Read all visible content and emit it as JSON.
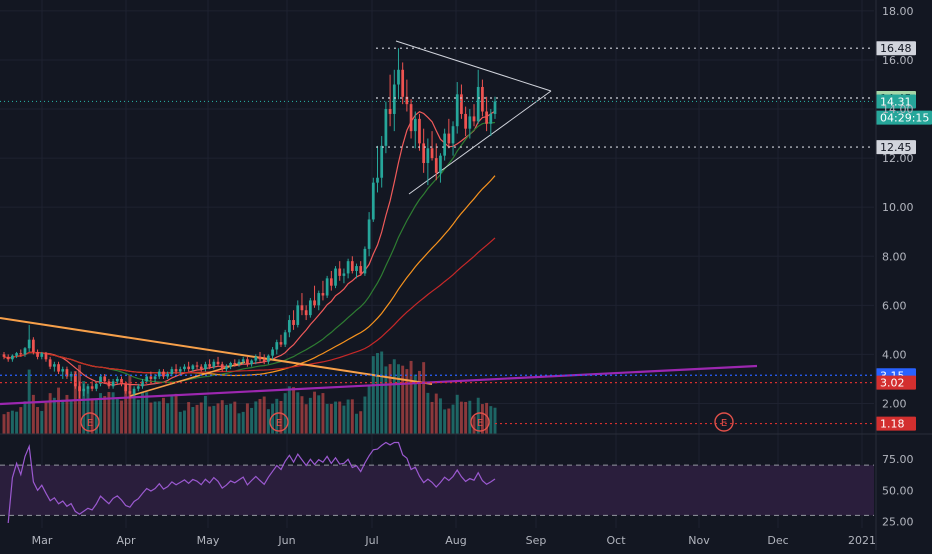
{
  "colors": {
    "background": "#131722",
    "grid": "#1e2230",
    "up": "#26a69a",
    "down": "#ef5350",
    "axis_text": "#b2b5be",
    "sma20": "#f05a5a",
    "sma50": "#2e7d32",
    "sma100": "#f7931e",
    "sma200": "#c62828",
    "trendline_orange": "#f7a04a",
    "trendline_purple": "#9c27b0",
    "triangle": "#d1d4dc",
    "rsi_line": "#9b59d0",
    "rsi_fill": "#2a1e3c"
  },
  "chart_data": [
    {
      "type": "candlestick",
      "title": "",
      "x": [
        "Mar",
        "Apr",
        "May",
        "Jun",
        "Jul",
        "Aug",
        "Sep",
        "Oct",
        "Nov",
        "Dec",
        "2021"
      ],
      "yticks": [
        "18.00",
        "16.00",
        "14.00",
        "12.00",
        "10.00",
        "8.00",
        "6.00",
        "4.00",
        "2.00"
      ],
      "ylim": [
        1.0,
        18.2
      ],
      "price_markers": [
        {
          "label": "16.48",
          "value": 16.48,
          "style": "white"
        },
        {
          "label": "14.45",
          "value": 14.45,
          "style": "lightgreen"
        },
        {
          "label": "14.31",
          "value": 14.31,
          "style": "teal"
        },
        {
          "label": "04:29:15",
          "value": 13.65,
          "style": "teal"
        },
        {
          "label": "12.45",
          "value": 12.45,
          "style": "white"
        },
        {
          "label": "3.15",
          "value": 3.15,
          "style": "blue"
        },
        {
          "label": "3.02",
          "value": 2.85,
          "style": "red"
        },
        {
          "label": "1.18",
          "value": 1.18,
          "style": "red"
        }
      ],
      "earnings_markers": [
        "E",
        "E",
        "E",
        "E"
      ],
      "earnings_dates_index": [
        16,
        56,
        112,
        182
      ],
      "volume": {
        "unit": "relative",
        "max": 100
      },
      "series": [
        {
          "values_ohlc": [
            [
              4.0,
              4.1,
              3.8,
              3.9
            ],
            [
              3.9,
              4.0,
              3.7,
              3.8
            ],
            [
              3.8,
              4.0,
              3.7,
              3.95
            ],
            [
              3.95,
              4.1,
              3.85,
              4.05
            ],
            [
              4.05,
              4.2,
              3.9,
              4.0
            ],
            [
              4.0,
              4.3,
              3.9,
              4.25
            ],
            [
              4.25,
              5.2,
              4.1,
              4.6
            ],
            [
              4.6,
              4.7,
              4.0,
              4.1
            ],
            [
              4.1,
              4.2,
              3.8,
              3.9
            ],
            [
              3.9,
              4.1,
              3.8,
              4.05
            ],
            [
              4.05,
              4.1,
              3.7,
              3.8
            ],
            [
              3.8,
              3.9,
              3.4,
              3.5
            ],
            [
              3.5,
              3.7,
              3.3,
              3.6
            ],
            [
              3.6,
              3.7,
              3.2,
              3.3
            ],
            [
              3.3,
              3.5,
              3.0,
              3.4
            ],
            [
              3.4,
              3.5,
              3.0,
              3.1
            ],
            [
              3.1,
              3.3,
              2.9,
              3.2
            ],
            [
              3.2,
              3.3,
              2.6,
              2.7
            ],
            [
              2.7,
              2.9,
              2.2,
              2.5
            ],
            [
              2.5,
              2.8,
              2.3,
              2.6
            ],
            [
              2.6,
              2.8,
              2.4,
              2.7
            ],
            [
              2.7,
              2.9,
              2.5,
              2.6
            ],
            [
              2.6,
              2.9,
              2.5,
              2.8
            ],
            [
              2.8,
              3.2,
              2.7,
              3.1
            ],
            [
              3.1,
              3.2,
              2.8,
              2.9
            ],
            [
              2.9,
              3.0,
              2.6,
              2.7
            ],
            [
              2.7,
              3.0,
              2.6,
              2.9
            ],
            [
              2.9,
              3.1,
              2.8,
              3.0
            ],
            [
              3.0,
              3.1,
              2.7,
              2.8
            ],
            [
              2.8,
              2.9,
              2.4,
              2.5
            ],
            [
              2.5,
              2.8,
              2.2,
              2.4
            ],
            [
              2.4,
              2.7,
              2.3,
              2.6
            ],
            [
              2.6,
              2.8,
              2.5,
              2.7
            ],
            [
              2.7,
              3.0,
              2.6,
              2.9
            ],
            [
              2.9,
              3.2,
              2.8,
              3.1
            ],
            [
              3.1,
              3.3,
              2.9,
              3.0
            ],
            [
              3.0,
              3.2,
              2.8,
              3.1
            ],
            [
              3.1,
              3.4,
              3.0,
              3.3
            ],
            [
              3.3,
              3.4,
              3.0,
              3.1
            ],
            [
              3.1,
              3.3,
              3.0,
              3.2
            ],
            [
              3.2,
              3.5,
              3.1,
              3.4
            ],
            [
              3.4,
              3.6,
              3.2,
              3.3
            ],
            [
              3.3,
              3.5,
              3.2,
              3.4
            ],
            [
              3.4,
              3.6,
              3.3,
              3.5
            ],
            [
              3.5,
              3.7,
              3.3,
              3.4
            ],
            [
              3.4,
              3.6,
              3.3,
              3.55
            ],
            [
              3.55,
              3.7,
              3.4,
              3.5
            ],
            [
              3.5,
              3.6,
              3.3,
              3.4
            ],
            [
              3.4,
              3.7,
              3.3,
              3.6
            ],
            [
              3.6,
              3.8,
              3.4,
              3.5
            ],
            [
              3.5,
              3.8,
              3.4,
              3.7
            ],
            [
              3.7,
              3.9,
              3.5,
              3.6
            ],
            [
              3.6,
              3.7,
              3.3,
              3.4
            ],
            [
              3.4,
              3.6,
              3.3,
              3.5
            ],
            [
              3.5,
              3.7,
              3.4,
              3.65
            ],
            [
              3.65,
              3.8,
              3.5,
              3.6
            ],
            [
              3.6,
              3.8,
              3.5,
              3.7
            ],
            [
              3.7,
              3.9,
              3.6,
              3.8
            ],
            [
              3.8,
              3.9,
              3.5,
              3.6
            ],
            [
              3.6,
              3.8,
              3.5,
              3.75
            ],
            [
              3.75,
              4.0,
              3.6,
              3.9
            ],
            [
              3.9,
              4.1,
              3.7,
              3.8
            ],
            [
              3.8,
              4.0,
              3.6,
              3.7
            ],
            [
              3.7,
              4.0,
              3.6,
              3.95
            ],
            [
              3.95,
              4.3,
              3.8,
              4.2
            ],
            [
              4.2,
              4.6,
              4.0,
              4.5
            ],
            [
              4.5,
              4.8,
              4.3,
              4.4
            ],
            [
              4.4,
              5.0,
              4.3,
              4.9
            ],
            [
              4.9,
              5.6,
              4.7,
              5.4
            ],
            [
              5.4,
              5.8,
              5.0,
              5.2
            ],
            [
              5.2,
              6.2,
              5.1,
              6.0
            ],
            [
              6.0,
              6.5,
              5.6,
              5.8
            ],
            [
              5.8,
              6.0,
              5.4,
              5.6
            ],
            [
              5.6,
              6.3,
              5.5,
              6.2
            ],
            [
              6.2,
              6.8,
              5.9,
              6.0
            ],
            [
              6.0,
              6.6,
              5.8,
              6.5
            ],
            [
              6.5,
              7.0,
              6.2,
              6.4
            ],
            [
              6.4,
              7.2,
              6.3,
              7.1
            ],
            [
              7.1,
              7.4,
              6.6,
              6.8
            ],
            [
              6.8,
              7.6,
              6.7,
              7.5
            ],
            [
              7.5,
              7.8,
              7.0,
              7.2
            ],
            [
              7.2,
              7.5,
              6.9,
              7.3
            ],
            [
              7.3,
              7.9,
              7.1,
              7.8
            ],
            [
              7.8,
              8.0,
              7.3,
              7.4
            ],
            [
              7.4,
              7.7,
              7.1,
              7.6
            ],
            [
              7.6,
              7.8,
              7.2,
              7.3
            ],
            [
              7.3,
              8.4,
              7.2,
              8.3
            ],
            [
              8.3,
              9.8,
              8.0,
              9.5
            ],
            [
              9.5,
              11.2,
              9.4,
              11.0
            ],
            [
              11.0,
              12.5,
              10.6,
              11.2
            ],
            [
              11.2,
              12.9,
              10.8,
              12.5
            ],
            [
              12.5,
              14.3,
              12.2,
              14.0
            ],
            [
              14.0,
              15.4,
              13.3,
              13.8
            ],
            [
              13.8,
              15.6,
              13.1,
              15.0
            ],
            [
              15.0,
              16.48,
              14.4,
              15.6
            ],
            [
              15.6,
              15.9,
              14.2,
              14.5
            ],
            [
              14.5,
              15.2,
              13.9,
              14.2
            ],
            [
              14.2,
              14.4,
              12.8,
              13.1
            ],
            [
              13.1,
              13.9,
              12.4,
              13.6
            ],
            [
              13.6,
              13.8,
              12.3,
              12.6
            ],
            [
              12.6,
              13.2,
              11.4,
              11.8
            ],
            [
              11.8,
              12.8,
              10.9,
              12.4
            ],
            [
              12.4,
              13.1,
              11.9,
              12.0
            ],
            [
              12.0,
              12.6,
              11.1,
              11.4
            ],
            [
              11.4,
              12.2,
              11.0,
              12.1
            ],
            [
              12.1,
              13.2,
              11.9,
              13.0
            ],
            [
              13.0,
              13.6,
              12.4,
              12.6
            ],
            [
              12.6,
              13.5,
              12.1,
              13.3
            ],
            [
              13.3,
              15.1,
              13.0,
              14.6
            ],
            [
              14.6,
              15.0,
              13.6,
              13.8
            ],
            [
              13.8,
              14.1,
              12.9,
              13.2
            ],
            [
              13.2,
              14.0,
              12.8,
              13.7
            ],
            [
              13.7,
              14.2,
              13.3,
              13.5
            ],
            [
              13.5,
              15.6,
              13.4,
              14.9
            ],
            [
              14.9,
              15.2,
              13.7,
              13.9
            ],
            [
              13.9,
              14.5,
              13.1,
              13.4
            ],
            [
              13.4,
              14.0,
              12.9,
              13.8
            ],
            [
              13.8,
              14.5,
              13.6,
              14.31
            ]
          ]
        },
        {
          "name": "",
          "kind": "sma20"
        },
        {
          "name": "",
          "kind": "sma50"
        },
        {
          "name": "",
          "kind": "sma100"
        },
        {
          "name": "",
          "kind": "sma200"
        }
      ],
      "grid": true
    },
    {
      "type": "line",
      "title": "",
      "yticks": [
        "75.00",
        "50.00",
        "25.00"
      ],
      "ylim": [
        20,
        90
      ],
      "bands": [
        70,
        30
      ]
    }
  ]
}
